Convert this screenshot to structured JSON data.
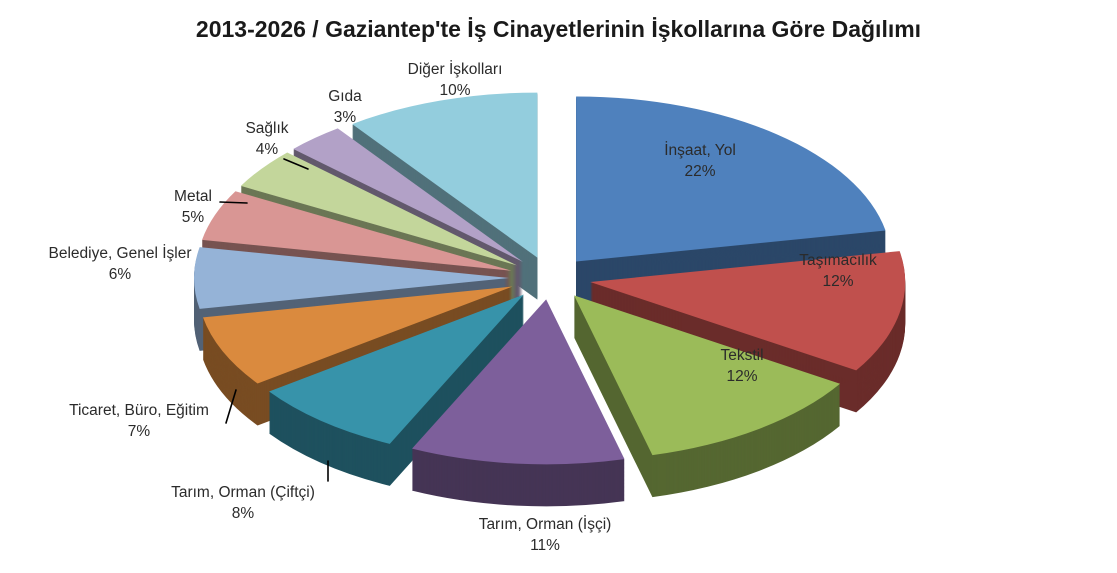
{
  "title": "2013-2026 / Gaziantep'te İş Cinayetlerinin İşkollarına Göre Dağılımı",
  "chart_data": {
    "type": "pie",
    "style": "3d-exploded",
    "title": "2013-2026 / Gaziantep'te İş Cinayetlerinin İşkollarına Göre Dağılımı",
    "unit": "%",
    "start_angle_deg": 0,
    "direction": "clockwise",
    "legend": "none",
    "background": "#FFFFFF",
    "total": 100,
    "slices": [
      {
        "label": "İnşaat, Yol",
        "value": 22,
        "pct_label": "22%",
        "color": "#4F81BD"
      },
      {
        "label": "Taşımacılık",
        "value": 12,
        "pct_label": "12%",
        "color": "#C0504D"
      },
      {
        "label": "Tekstil",
        "value": 12,
        "pct_label": "12%",
        "color": "#9BBB59"
      },
      {
        "label": "Tarım, Orman (İşçi)",
        "value": 11,
        "pct_label": "11%",
        "color": "#7D5F9B"
      },
      {
        "label": "Tarım, Orman (Çiftçi)",
        "value": 8,
        "pct_label": "8%",
        "color": "#3793AA"
      },
      {
        "label": "Ticaret, Büro, Eğitim",
        "value": 7,
        "pct_label": "7%",
        "color": "#DA8A3E"
      },
      {
        "label": "Belediye, Genel İşler",
        "value": 6,
        "pct_label": "6%",
        "color": "#95B3D7"
      },
      {
        "label": "Metal",
        "value": 5,
        "pct_label": "5%",
        "color": "#D99694"
      },
      {
        "label": "Sağlık",
        "value": 4,
        "pct_label": "4%",
        "color": "#C3D69B"
      },
      {
        "label": "Gıda",
        "value": 3,
        "pct_label": "3%",
        "color": "#B2A1C7"
      },
      {
        "label": "Diğer İşkolları",
        "value": 10,
        "pct_label": "10%",
        "color": "#93CDDD"
      }
    ]
  }
}
